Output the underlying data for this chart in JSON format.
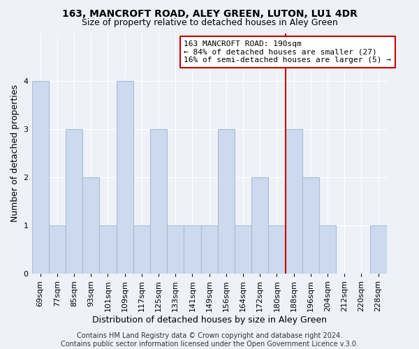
{
  "title": "163, MANCROFT ROAD, ALEY GREEN, LUTON, LU1 4DR",
  "subtitle": "Size of property relative to detached houses in Aley Green",
  "xlabel": "Distribution of detached houses by size in Aley Green",
  "ylabel": "Number of detached properties",
  "categories": [
    "69sqm",
    "77sqm",
    "85sqm",
    "93sqm",
    "101sqm",
    "109sqm",
    "117sqm",
    "125sqm",
    "133sqm",
    "141sqm",
    "149sqm",
    "156sqm",
    "164sqm",
    "172sqm",
    "180sqm",
    "188sqm",
    "196sqm",
    "204sqm",
    "212sqm",
    "220sqm",
    "228sqm"
  ],
  "values": [
    4,
    1,
    3,
    2,
    1,
    4,
    1,
    3,
    1,
    1,
    1,
    3,
    1,
    2,
    1,
    3,
    2,
    1,
    0,
    0,
    1
  ],
  "bar_color": "#ccd9ee",
  "bar_edge_color": "#a8bcd8",
  "vline_color": "#cc0000",
  "annotation_text": "163 MANCROFT ROAD: 190sqm\n← 84% of detached houses are smaller (27)\n16% of semi-detached houses are larger (5) →",
  "annotation_box_color": "#ffffff",
  "annotation_box_edge": "#cc0000",
  "ylim": [
    0,
    5
  ],
  "yticks": [
    0,
    1,
    2,
    3,
    4
  ],
  "background_color": "#eef2f8",
  "plot_bg_color": "#eef2f8",
  "title_fontsize": 10,
  "subtitle_fontsize": 9,
  "axis_label_fontsize": 9,
  "tick_fontsize": 8,
  "annotation_fontsize": 8,
  "footer_text": "Contains HM Land Registry data © Crown copyright and database right 2024.\nContains public sector information licensed under the Open Government Licence v.3.0.",
  "footer_fontsize": 7
}
